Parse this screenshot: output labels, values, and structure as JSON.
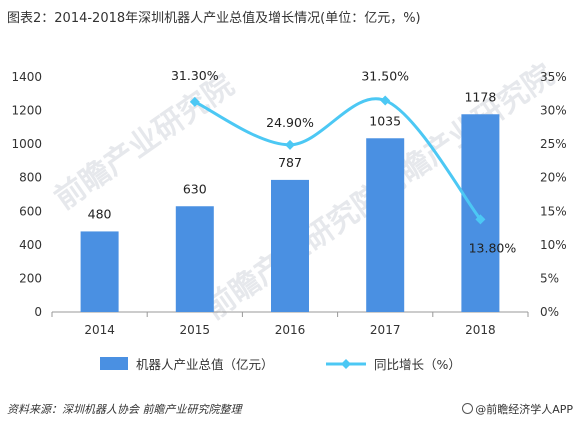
{
  "title": "图表2：2014-2018年深圳机器人产业总值及增长情况(单位：亿元，%)",
  "source": "资料来源：深圳机器人协会 前瞻产业研究院整理",
  "brand": "@前瞻经济学人APP",
  "watermark": "前瞻产业研究院",
  "colors": {
    "bar": "#4a90e2",
    "line": "#4cc8f4",
    "axis": "#999999"
  },
  "chart_data": {
    "type": "bar",
    "categories": [
      "2014",
      "2015",
      "2016",
      "2017",
      "2018"
    ],
    "series": [
      {
        "name": "机器人产业总值（亿元）",
        "type": "bar",
        "axis": "left",
        "values": [
          480,
          630,
          787,
          1035,
          1178
        ],
        "labels": [
          "480",
          "630",
          "787",
          "1035",
          "1178"
        ]
      },
      {
        "name": "同比增长（%）",
        "type": "line",
        "axis": "right",
        "smooth": true,
        "values": [
          null,
          31.3,
          24.9,
          31.5,
          13.8
        ],
        "labels": [
          "",
          "31.30%",
          "24.90%",
          "31.50%",
          "13.80%"
        ]
      }
    ],
    "y_left": {
      "min": 0,
      "max": 1400,
      "step": 200,
      "ticks": [
        "0",
        "200",
        "400",
        "600",
        "800",
        "1000",
        "1200",
        "1400"
      ]
    },
    "y_right": {
      "min": 0,
      "max": 35,
      "step": 5,
      "ticks": [
        "0%",
        "5%",
        "10%",
        "15%",
        "20%",
        "25%",
        "30%",
        "35%"
      ]
    },
    "legend_position": "bottom",
    "grid": false
  }
}
